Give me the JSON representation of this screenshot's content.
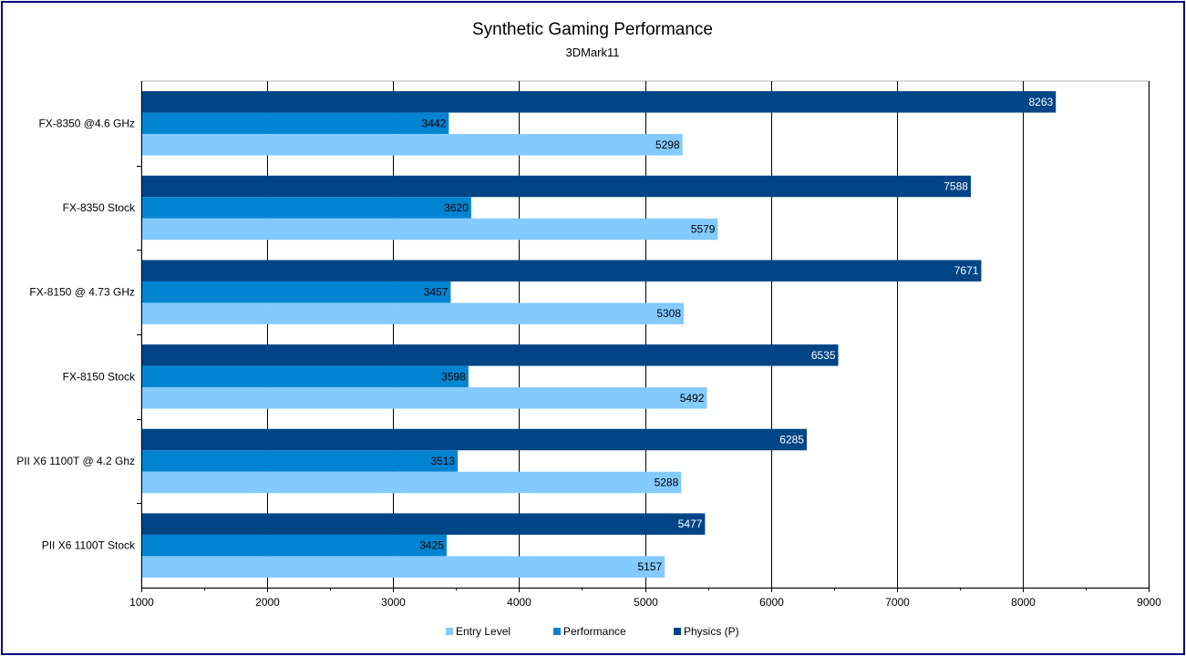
{
  "chart_data": {
    "type": "bar",
    "orientation": "horizontal",
    "title": "Synthetic Gaming Performance",
    "subtitle": "3DMark11",
    "categories": [
      "FX-8350 @4.6 GHz",
      "FX-8350 Stock",
      "FX-8150 @ 4.73 GHz",
      "FX-8150 Stock",
      "PII X6 1100T @ 4.2 Ghz",
      "PII X6 1100T Stock"
    ],
    "series": [
      {
        "name": "Physics (P)",
        "color": "#004586",
        "label_color": "#ffffff",
        "values": [
          8263,
          7588,
          7671,
          6535,
          6285,
          5477
        ]
      },
      {
        "name": "Performance",
        "color": "#0084d1",
        "label_color": "#000000",
        "values": [
          3442,
          3620,
          3457,
          3598,
          3513,
          3425
        ]
      },
      {
        "name": "Entry Level",
        "color": "#83caff",
        "label_color": "#000000",
        "values": [
          5298,
          5579,
          5308,
          5492,
          5288,
          5157
        ]
      }
    ],
    "legend_order": [
      "Entry Level",
      "Performance",
      "Physics (P)"
    ],
    "xlim": [
      1000,
      9000
    ],
    "xticks": [
      1000,
      2000,
      3000,
      4000,
      5000,
      6000,
      7000,
      8000,
      9000
    ],
    "grid": true,
    "legend_position": "bottom"
  }
}
